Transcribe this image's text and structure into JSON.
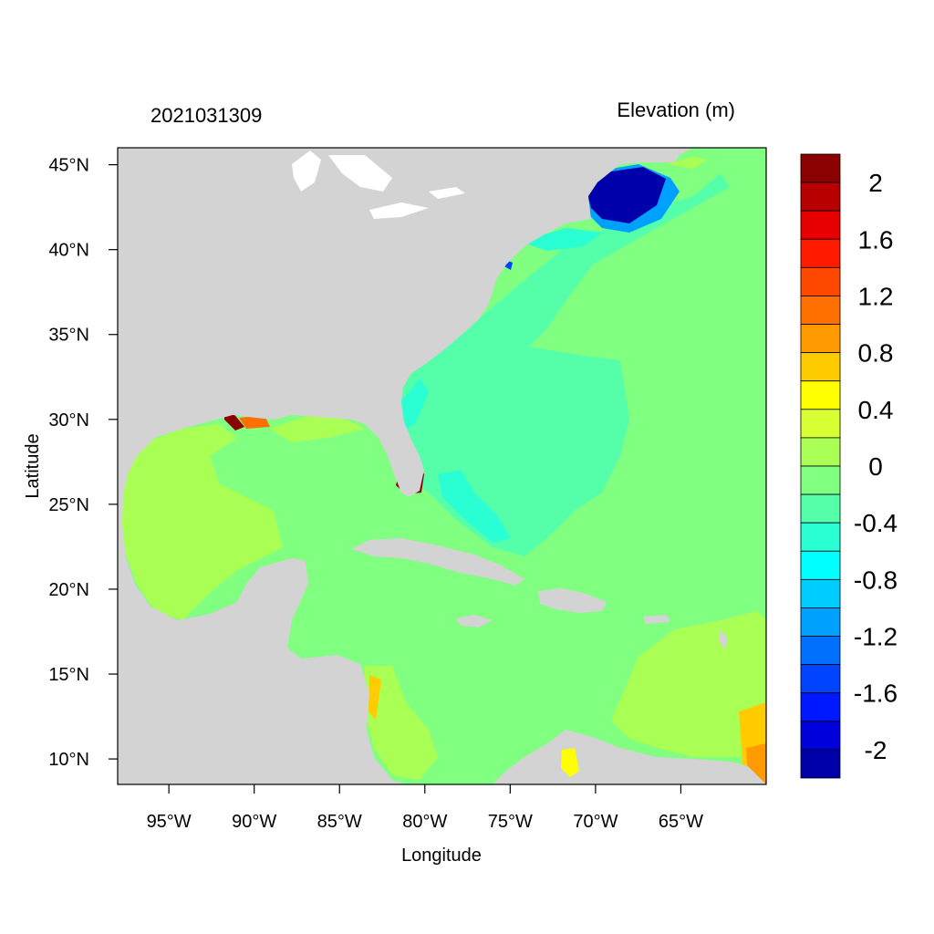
{
  "map": {
    "left_title": "2021031309",
    "right_title": "Elevation (m)",
    "x_axis_label": "Longitude",
    "y_axis_label": "Latitude",
    "extent": {
      "lon_min": -98,
      "lon_max": -60,
      "lat_min": 8.5,
      "lat_max": 46
    },
    "lon_ticks": [
      {
        "value": -95,
        "label": "95°W"
      },
      {
        "value": -90,
        "label": "90°W"
      },
      {
        "value": -85,
        "label": "85°W"
      },
      {
        "value": -80,
        "label": "80°W"
      },
      {
        "value": -75,
        "label": "75°W"
      },
      {
        "value": -70,
        "label": "70°W"
      },
      {
        "value": -65,
        "label": "65°W"
      }
    ],
    "lat_ticks": [
      {
        "value": 45,
        "label": "45°N"
      },
      {
        "value": 40,
        "label": "40°N"
      },
      {
        "value": 35,
        "label": "35°N"
      },
      {
        "value": 30,
        "label": "30°N"
      },
      {
        "value": 25,
        "label": "25°N"
      },
      {
        "value": 20,
        "label": "20°N"
      },
      {
        "value": 15,
        "label": "15°N"
      },
      {
        "value": 10,
        "label": "10°N"
      }
    ],
    "land_color": "#d3d3d3",
    "ocean_background_color": "#80ff80"
  },
  "colorbar": {
    "colors_top_to_bottom": [
      "#8b0000",
      "#b80000",
      "#e60000",
      "#ff1a00",
      "#ff4800",
      "#ff7000",
      "#ff9a00",
      "#ffcc00",
      "#ffff00",
      "#d7ff33",
      "#aaff55",
      "#80ff80",
      "#55ffaa",
      "#2affd4",
      "#00ffff",
      "#00ccff",
      "#00a0ff",
      "#0070ff",
      "#0044ff",
      "#0018ff",
      "#0000dd",
      "#0000aa"
    ],
    "labels": [
      "2",
      "1.6",
      "1.2",
      "0.8",
      "0.4",
      "0",
      "-0.4",
      "-0.8",
      "-1.2",
      "-1.6",
      "-2"
    ]
  }
}
